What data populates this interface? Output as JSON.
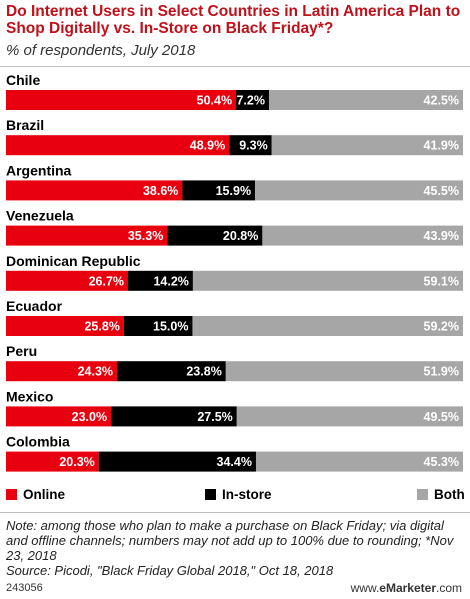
{
  "header": {
    "title": "Do Internet Users in Select Countries in Latin America Plan to Shop Digitally vs. In-Store on Black Friday*?",
    "subtitle": "% of respondents, July 2018"
  },
  "legend": {
    "online": "Online",
    "instore": "In-store",
    "both": "Both"
  },
  "footer": {
    "note": "Note: among those who plan to make a purchase on Black Friday; via digital and offline channels; numbers may not add up to 100% due to rounding; *Nov 23, 2018",
    "source": "Source: Picodi, \"Black Friday Global 2018,\" Oct 18, 2018",
    "id": "243056",
    "brand_prefix": "www.",
    "brand_bold": "eMarketer",
    "brand_suffix": ".com"
  },
  "colors": {
    "online": "#e8000e",
    "instore": "#000000",
    "both": "#a6a6a6"
  },
  "chart_data": {
    "type": "bar",
    "orientation": "horizontal",
    "stacked": true,
    "categories": [
      "Chile",
      "Brazil",
      "Argentina",
      "Venezuela",
      "Dominican Republic",
      "Ecuador",
      "Peru",
      "Mexico",
      "Colombia"
    ],
    "series": [
      {
        "name": "Online",
        "values": [
          50.4,
          48.9,
          38.6,
          35.3,
          26.7,
          25.8,
          24.3,
          23.0,
          20.3
        ],
        "labels": [
          "50.4%",
          "48.9%",
          "38.6%",
          "35.3%",
          "26.7%",
          "25.8%",
          "24.3%",
          "23.0%",
          "20.3%"
        ]
      },
      {
        "name": "In-store",
        "values": [
          7.2,
          9.3,
          15.9,
          20.8,
          14.2,
          15.0,
          23.8,
          27.5,
          34.4
        ],
        "labels": [
          "7.2%",
          "9.3%",
          "15.9%",
          "20.8%",
          "14.2%",
          "15.0%",
          "23.8%",
          "27.5%",
          "34.4%"
        ]
      },
      {
        "name": "Both",
        "values": [
          42.5,
          41.9,
          45.5,
          43.9,
          59.1,
          59.2,
          51.9,
          49.5,
          45.3
        ],
        "labels": [
          "42.5%",
          "41.9%",
          "45.5%",
          "43.9%",
          "59.1%",
          "59.2%",
          "51.9%",
          "49.5%",
          "45.3%"
        ]
      }
    ],
    "title": "Do Internet Users in Select Countries in Latin America Plan to Shop Digitally vs. In-Store on Black Friday*?",
    "subtitle": "% of respondents, July 2018",
    "legend_position": "bottom"
  }
}
